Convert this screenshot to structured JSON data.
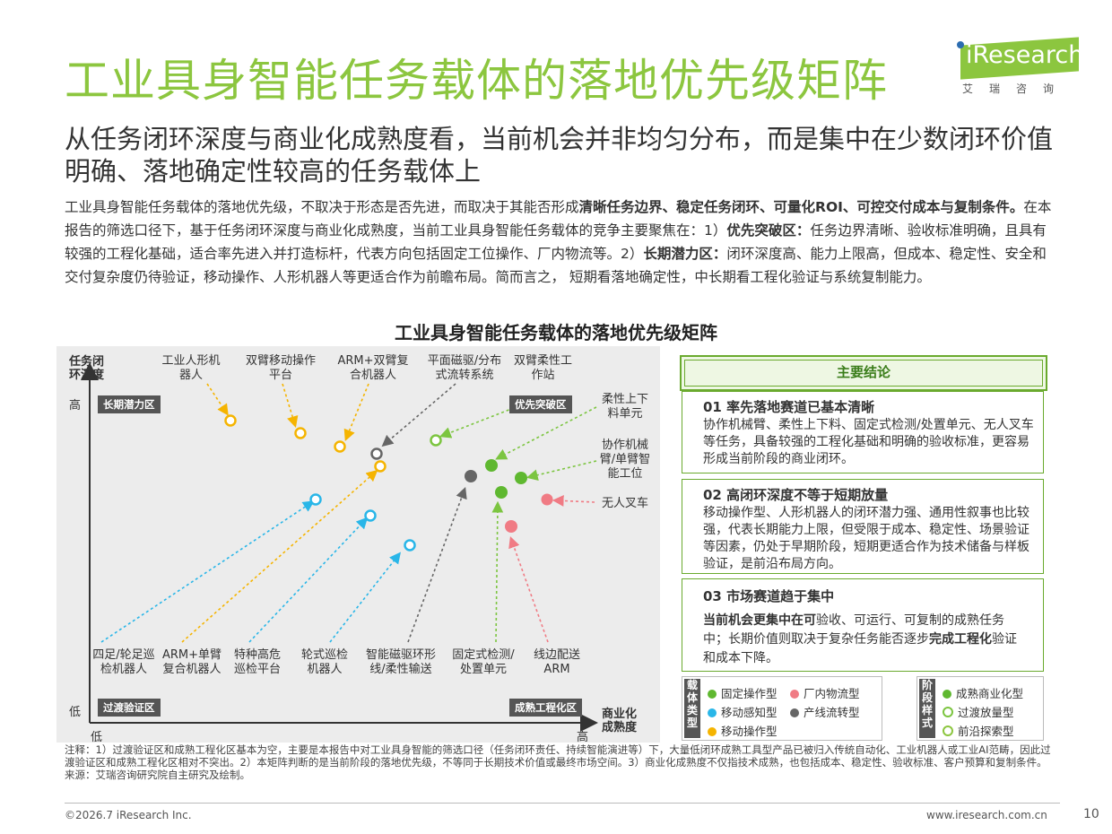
{
  "title": "工业具身智能任务载体的落地优先级矩阵",
  "logo": {
    "word": "iResearch",
    "chinese": "艾瑞咨询"
  },
  "subtitle": "从任务闭环深度与商业化成熟度看，当前机会并非均匀分布，而是集中在少数闭环价值明确、落地确定性较高的任务载体上",
  "body": {
    "p1": "工业具身智能任务载体的落地优先级，不取决于形态是否先进，而取决于其能否形成",
    "p1_bold": "清晰任务边界、稳定任务闭环、可量化ROI、可控交付成本与复制条件。",
    "p2": "在本报告的筛选口径下，基于任务闭环深度与商业化成熟度，当前工业具身智能任务载体的竞争主要聚焦在：1）",
    "p2_bold": "优先突破区：",
    "p3": "任务边界清晰、验收标准明确，且具有较强的工程化基础，适合率先进入并打造标杆，代表方向包括固定工位操作、厂内物流等。2）",
    "p3_bold": "长期潜力区：",
    "p4": "闭环深度高、能力上限高，但成本、稳定性、安全和交付复杂度仍待验证，移动操作、人形机器人等更适合作为前瞻布局。简而言之， 短期看落地确定性，中长期看工程化验证与系统复制能力。"
  },
  "chart_title": "工业具身智能任务载体的落地优先级矩阵",
  "matrix": {
    "y_axis": "任务闭环深度",
    "x_axis": "商业化成熟度",
    "y_high": "高",
    "y_low": "低",
    "x_low": "低",
    "x_high": "高",
    "zones": {
      "top_left": "长期潜力区",
      "top_right": "优先突破区",
      "bottom_left": "过渡验证区",
      "bottom_right": "成熟工程化区"
    },
    "top_labels": [
      "工业人形机器人",
      "双臂移动操作平台",
      "ARM+双臂复合机器人",
      "平面磁驱/分布式流转系统",
      "双臂柔性工作站"
    ],
    "right_labels": [
      "柔性上下料单元",
      "协作机械臂/单臂智能工位",
      "无人叉车"
    ],
    "bottom_labels": [
      "四足/轮足巡检机器人",
      "ARM+单臂复合机器人",
      "特种高危巡检平台",
      "轮式巡检机器人",
      "智能磁驱环形线/柔性输送",
      "固定式检测/处置单元",
      "线边配送ARM"
    ]
  },
  "chart_data": {
    "type": "scatter",
    "title": "工业具身智能任务载体的落地优先级矩阵",
    "xlabel": "商业化成熟度",
    "ylabel": "任务闭环深度",
    "categories_legend": [
      "固定操作型",
      "厂内物流型",
      "移动感知型",
      "产线流转型",
      "移动操作型"
    ],
    "stages_legend": [
      "成熟商业化型",
      "过渡放量型",
      "前沿探索型"
    ],
    "colors": {
      "固定操作型": "#5fb830",
      "厂内物流型": "#f07b84",
      "移动感知型": "#29b6e8",
      "产线流转型": "#666666",
      "移动操作型": "#f5b400"
    }
  },
  "conclusions": {
    "header": "主要结论",
    "items": [
      {
        "title": "01 率先落地赛道已基本清晰",
        "text": "协作机械臂、柔性上下料、固定式检测/处置单元、无人叉车等任务，具备较强的工程化基础和明确的验收标准，更容易形成当前阶段的商业闭环。"
      },
      {
        "title": "02 高闭环深度不等于短期放量",
        "text": "移动操作型、人形机器人的闭环潜力强、通用性叙事也比较强，代表长期能力上限，但受限于成本、稳定性、场景验证等因素，仍处于早期阶段，短期更适合作为技术储备与样板验证，是前沿布局方向。"
      },
      {
        "title": "03 市场赛道趋于集中",
        "text_a": "当前机会更集中在可",
        "text_b": "验收、可运行、可复制的成熟任务中；长期价值则取决于复杂任务能否逐步",
        "text_c": "完成工程化",
        "text_d": "验证和成本下降。"
      }
    ]
  },
  "legend": {
    "type_label": "载体类型",
    "stage_label": "阶段样式",
    "types": [
      "固定操作型",
      "厂内物流型",
      "移动感知型",
      "产线流转型",
      "移动操作型"
    ],
    "stages": [
      "成熟商业化型",
      "过渡放量型",
      "前沿探索型"
    ]
  },
  "notes": {
    "n1": "注释：1）过渡验证区和成熟工程化区基本为空，主要是本报告中对工业具身智能的筛选口径（任务闭环责任、持续智能演进等）下，大量低闭环成熟工具型产品已被归入传统自动化、工业机器人或工业AI范畴，因此过渡验证区和成熟工程化区相对不突出。2）本矩阵判断的是当前阶段的落地优先级，不等同于长期技术价值或最终市场空间。3）商业化成熟度不仅指技术成熟，也包括成本、稳定性、验收标准、客户预算和复制条件。",
    "source": "来源：艾瑞咨询研究院自主研究及绘制。"
  },
  "footer": {
    "copyright": "©2026.7 iResearch Inc.",
    "url": "www.iresearch.com.cn",
    "page": "10"
  }
}
